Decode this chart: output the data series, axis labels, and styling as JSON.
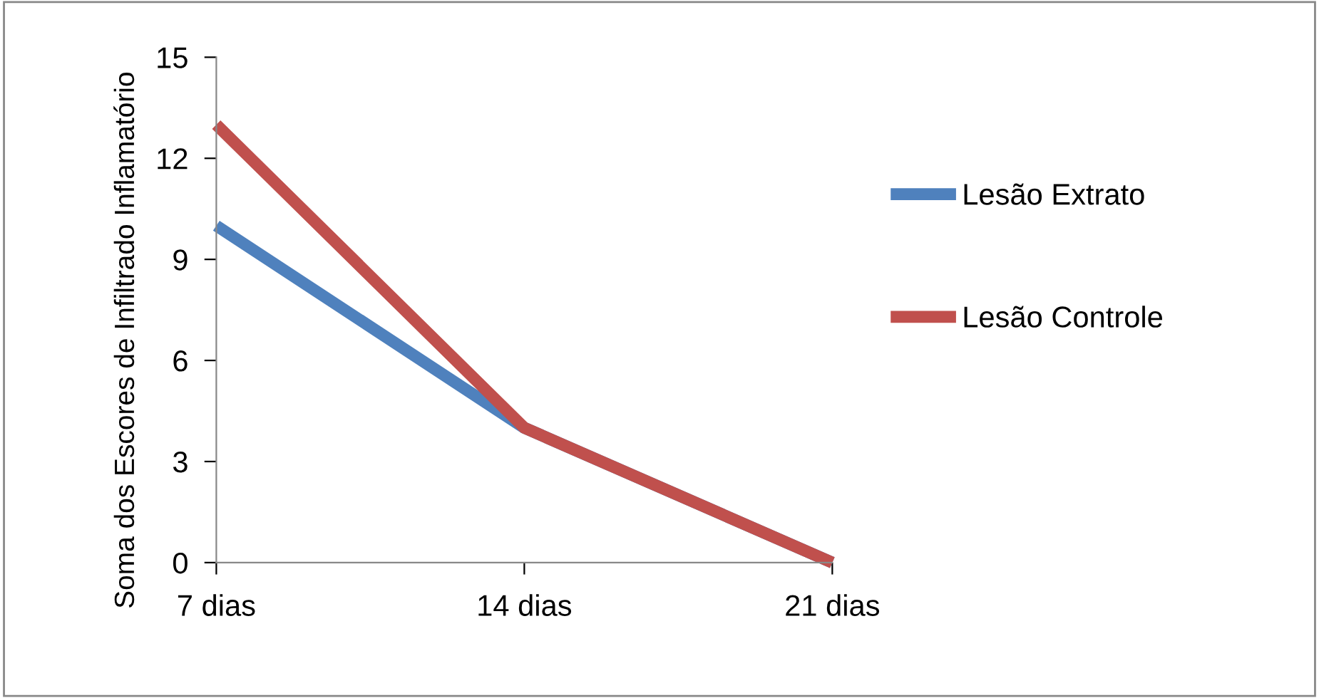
{
  "chart_data": {
    "type": "line",
    "ylabel": "Soma dos Escores de Infiltrado Inflamatório",
    "categories": [
      "7 dias",
      "14 dias",
      "21 dias"
    ],
    "series": [
      {
        "name": "Lesão Extrato",
        "color": "#4f81bd",
        "values": [
          10,
          4,
          0
        ]
      },
      {
        "name": "Lesão Controle",
        "color": "#c0504d",
        "values": [
          13,
          4,
          0
        ]
      }
    ],
    "ylim": [
      0,
      15
    ],
    "yticks": [
      0,
      3,
      6,
      9,
      12,
      15
    ],
    "grid": false,
    "legend": "right",
    "marker": "none",
    "line_style": "solid"
  }
}
